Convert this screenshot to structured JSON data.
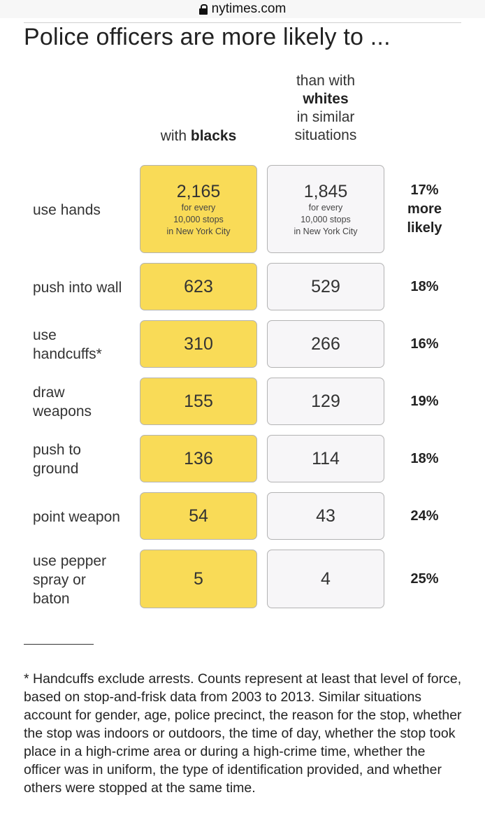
{
  "browser": {
    "url": "nytimes.com"
  },
  "title": "Police officers are more likely to ...",
  "chart_data": {
    "type": "table",
    "title": "Police officers are more likely to ...",
    "columns": {
      "blacks_prefix": "with ",
      "blacks_bold": "blacks",
      "whites_line1": "than with",
      "whites_bold": "whites",
      "whites_line3": "in similar",
      "whites_line4": "situations"
    },
    "cell_note": [
      "for every",
      "10,000 stops",
      "in New York City"
    ],
    "rows": [
      {
        "label": [
          "use hands"
        ],
        "blacks": "2,165",
        "whites": "1,845",
        "pct": [
          "17%",
          "more",
          "likely"
        ]
      },
      {
        "label": [
          "push into wall"
        ],
        "blacks": "623",
        "whites": "529",
        "pct": [
          "18%"
        ]
      },
      {
        "label": [
          "use",
          "handcuffs*"
        ],
        "blacks": "310",
        "whites": "266",
        "pct": [
          "16%"
        ]
      },
      {
        "label": [
          "draw",
          "weapons"
        ],
        "blacks": "155",
        "whites": "129",
        "pct": [
          "19%"
        ]
      },
      {
        "label": [
          "push to",
          "ground"
        ],
        "blacks": "136",
        "whites": "114",
        "pct": [
          "18%"
        ]
      },
      {
        "label": [
          "point weapon"
        ],
        "blacks": "54",
        "whites": "43",
        "pct": [
          "24%"
        ]
      },
      {
        "label": [
          "use pepper",
          "spray or",
          "baton"
        ],
        "blacks": "5",
        "whites": "4",
        "pct": [
          "25%"
        ]
      }
    ],
    "footnote": "* Handcuffs exclude arrests. Counts represent at least that level of force, based on stop-and-frisk data from 2003 to 2013. Similar situations account for gender, age, police precinct, the reason for the stop, whether the stop was indoors or outdoors, the time of day, whether the stop took place in a high-crime area or during a high-crime time, whether the officer was in uniform, the type of identification provided, and whether others were stopped at the same time."
  },
  "colors": {
    "blacks_fill": "#f9db57",
    "whites_fill": "#f7f6f8",
    "cell_border": "#b3b3b3"
  }
}
